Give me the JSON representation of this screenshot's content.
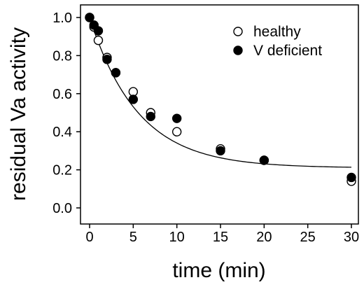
{
  "chart_data": {
    "type": "scatter",
    "xlabel": "time (min)",
    "ylabel": "residual Va activity",
    "xlim": [
      0,
      30
    ],
    "ylim": [
      0,
      1.0
    ],
    "x_ticks": [
      "0",
      "5",
      "10",
      "15",
      "20",
      "25",
      "30"
    ],
    "y_ticks": [
      "0.0",
      "0.2",
      "0.4",
      "0.6",
      "0.8",
      "1.0"
    ],
    "grid": false,
    "legend": "top-right",
    "series": [
      {
        "name": "healthy",
        "marker": "open-circle",
        "points": [
          {
            "x": 0,
            "y": 1.0
          },
          {
            "x": 0.5,
            "y": 0.95
          },
          {
            "x": 1,
            "y": 0.88
          },
          {
            "x": 2,
            "y": 0.79
          },
          {
            "x": 3,
            "y": 0.71
          },
          {
            "x": 5,
            "y": 0.61
          },
          {
            "x": 7,
            "y": 0.5
          },
          {
            "x": 10,
            "y": 0.4
          },
          {
            "x": 15,
            "y": 0.31
          },
          {
            "x": 20,
            "y": 0.25
          },
          {
            "x": 30,
            "y": 0.14
          }
        ]
      },
      {
        "name": "V deficient",
        "marker": "filled-circle",
        "points": [
          {
            "x": 0,
            "y": 1.0
          },
          {
            "x": 0.5,
            "y": 0.96
          },
          {
            "x": 1,
            "y": 0.93
          },
          {
            "x": 2,
            "y": 0.78
          },
          {
            "x": 3,
            "y": 0.71
          },
          {
            "x": 5,
            "y": 0.57
          },
          {
            "x": 7,
            "y": 0.48
          },
          {
            "x": 10,
            "y": 0.47
          },
          {
            "x": 15,
            "y": 0.3
          },
          {
            "x": 20,
            "y": 0.25
          },
          {
            "x": 30,
            "y": 0.16
          }
        ]
      }
    ],
    "fit_curve": {
      "type": "exponential-decay",
      "plateau": 0.21,
      "span": 0.79,
      "rate": 0.18
    }
  }
}
